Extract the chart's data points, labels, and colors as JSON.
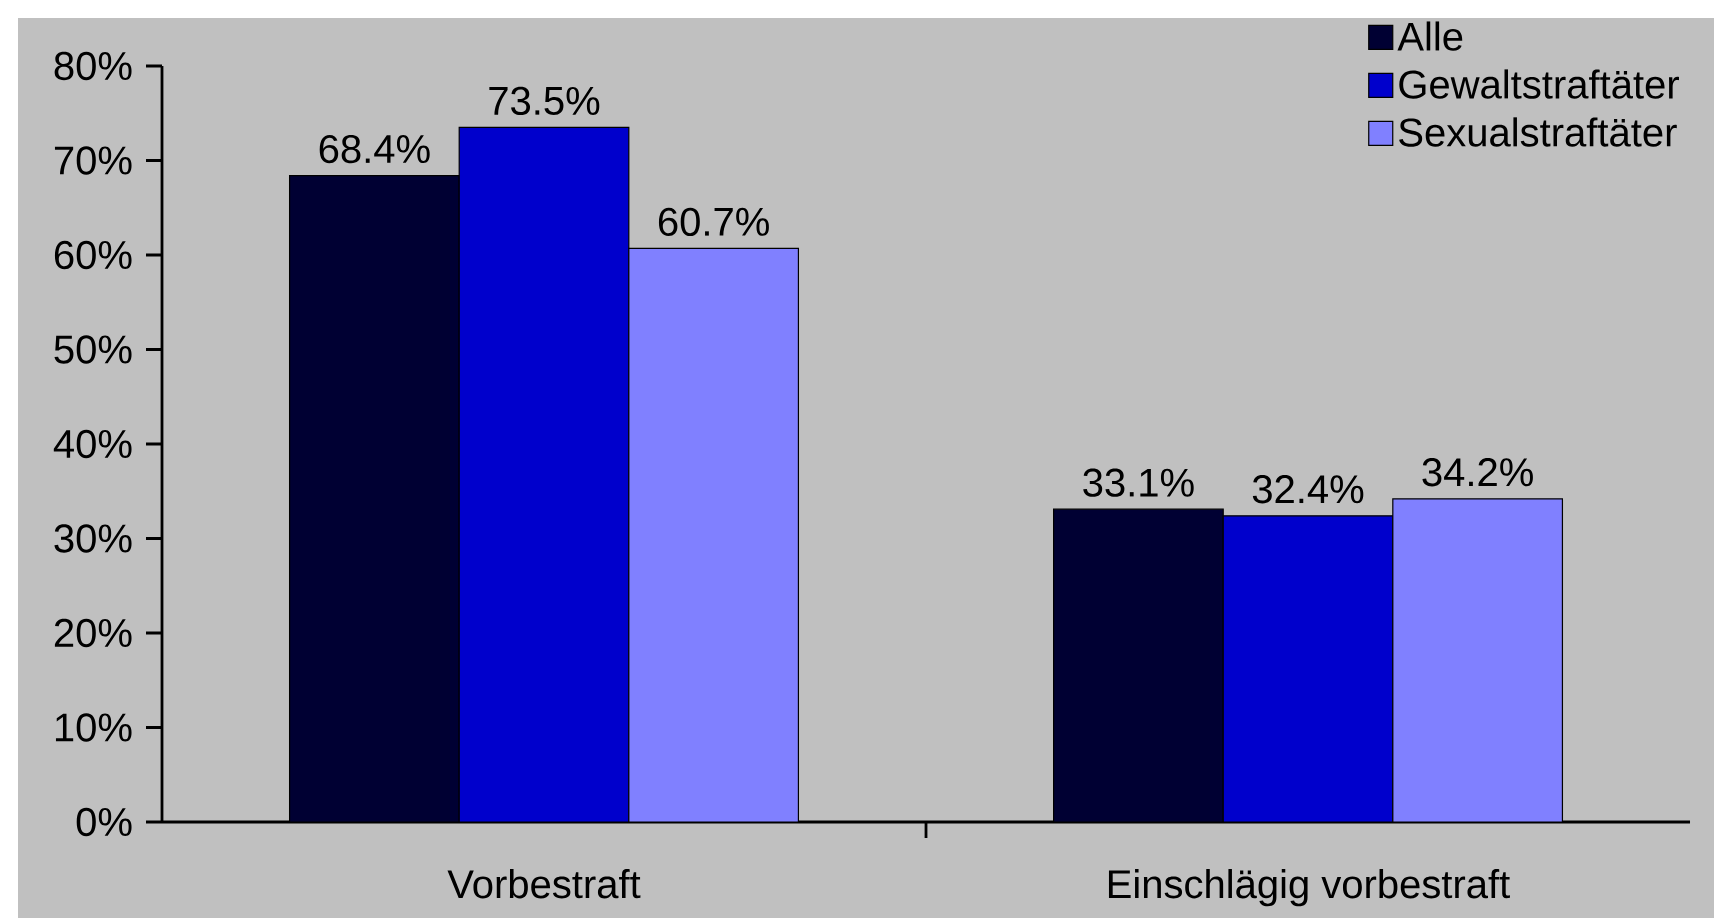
{
  "chart_data": {
    "type": "bar",
    "categories": [
      "Vorbestraft",
      "Einschlägig vorbestraft"
    ],
    "series": [
      {
        "name": "Alle",
        "color": "#000033",
        "values": [
          68.4,
          33.1
        ],
        "value_labels": [
          "68.4%",
          "33.1%"
        ]
      },
      {
        "name": "Gewaltstraftäter",
        "color": "#0000cc",
        "values": [
          73.5,
          32.4
        ],
        "value_labels": [
          "73.5%",
          "32.4%"
        ]
      },
      {
        "name": "Sexualstraftäter",
        "color": "#8080ff",
        "values": [
          60.7,
          34.2
        ],
        "value_labels": [
          "60.7%",
          "34.2%"
        ]
      }
    ],
    "ylim": [
      0,
      80
    ],
    "yticks": [
      {
        "value": 0,
        "label": "0%"
      },
      {
        "value": 10,
        "label": "10%"
      },
      {
        "value": 20,
        "label": "20%"
      },
      {
        "value": 30,
        "label": "30%"
      },
      {
        "value": 40,
        "label": "40%"
      },
      {
        "value": 50,
        "label": "50%"
      },
      {
        "value": 60,
        "label": "60%"
      },
      {
        "value": 70,
        "label": "70%"
      },
      {
        "value": 80,
        "label": "80%"
      }
    ],
    "legend": "top right"
  }
}
